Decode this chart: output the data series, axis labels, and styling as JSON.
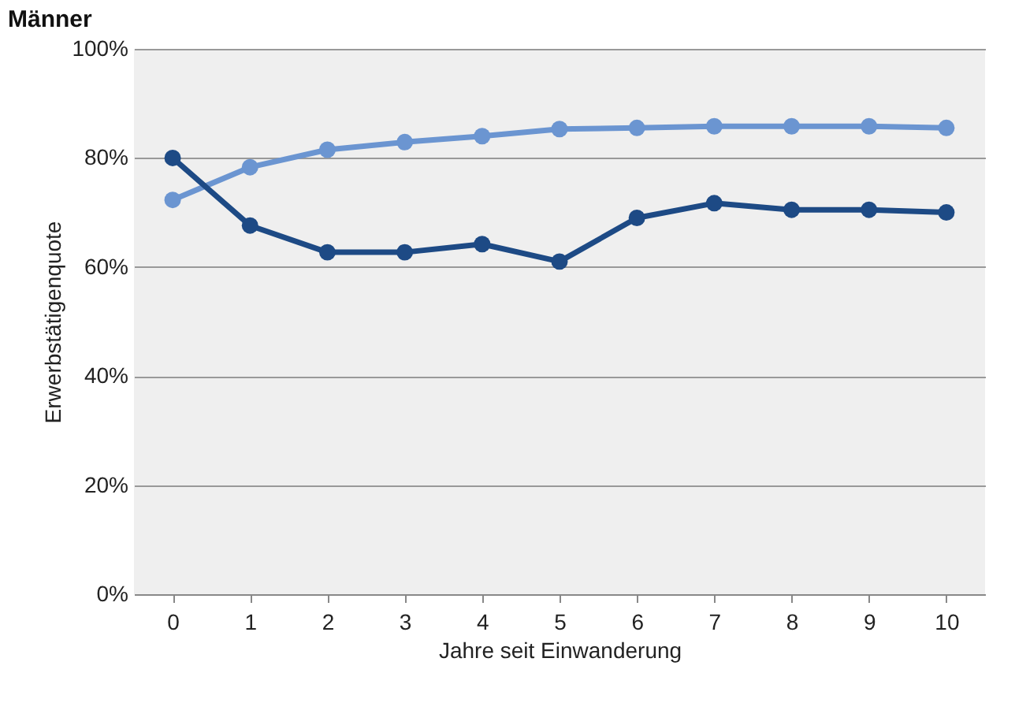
{
  "chart_data": {
    "type": "line",
    "title": "Männer",
    "xlabel": "Jahre seit Einwanderung",
    "ylabel": "Erwerbstätigenquote",
    "categories": [
      "0",
      "1",
      "2",
      "3",
      "4",
      "5",
      "6",
      "7",
      "8",
      "9",
      "10"
    ],
    "series": [
      {
        "color": "#6b95d1",
        "values": [
          72.3,
          78.3,
          81.5,
          82.9,
          84,
          85.3,
          85.5,
          85.8,
          85.8,
          85.8,
          85.5
        ]
      },
      {
        "color": "#1d4a85",
        "values": [
          80,
          67.6,
          62.7,
          62.7,
          64.2,
          61,
          69,
          71.7,
          70.5,
          70.5,
          70
        ]
      }
    ],
    "ylim": [
      0,
      100
    ],
    "yticks": [
      {
        "value": 0,
        "label": "0%"
      },
      {
        "value": 20,
        "label": "20%"
      },
      {
        "value": 40,
        "label": "40%"
      },
      {
        "value": 60,
        "label": "60%"
      },
      {
        "value": 80,
        "label": "80%"
      },
      {
        "value": 100,
        "label": "100%"
      }
    ],
    "grid": "y",
    "legend": false,
    "marker": "circle",
    "line_style": "solid"
  }
}
